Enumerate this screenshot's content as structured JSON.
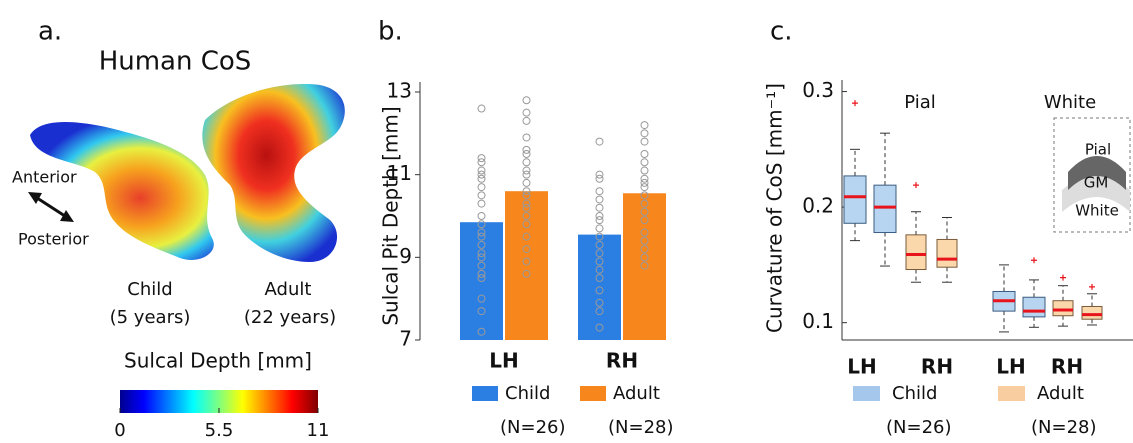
{
  "panel_a": {
    "label": "a.",
    "title": "Human CoS",
    "arrow_labels": [
      "Anterior",
      "Posterior"
    ],
    "subjects": [
      {
        "name": "Child",
        "age": "(5 years)"
      },
      {
        "name": "Adult",
        "age": "(22 years)"
      }
    ],
    "colorbar": {
      "title": "Sulcal Depth [mm]",
      "lim": [
        0,
        11
      ],
      "ticks": [
        0,
        5.5,
        11
      ]
    }
  },
  "chart_data": [
    {
      "type": "bar",
      "label": "b.",
      "ylabel": "Sulcal Pit Depth [mm]",
      "categories": [
        "LH",
        "RH"
      ],
      "ylim": [
        7,
        13
      ],
      "yticks": [
        7,
        9,
        11,
        13
      ],
      "series": [
        {
          "name": "Child",
          "note": "(N=26)",
          "color": "#2b7fe3",
          "values": [
            9.85,
            9.55
          ],
          "points": [
            [
              12.6,
              11.4,
              11.3,
              11.1,
              11.0,
              10.9,
              10.7,
              10.5,
              10.3,
              10.0,
              9.8,
              9.6,
              9.5,
              9.3,
              9.1,
              9.0,
              8.8,
              8.6,
              8.5,
              8.0,
              7.7,
              7.2
            ],
            [
              11.8,
              11.0,
              10.9,
              10.6,
              10.4,
              10.2,
              10.0,
              9.9,
              9.7,
              9.5,
              9.3,
              9.1,
              8.9,
              8.7,
              8.5,
              8.2,
              7.9,
              7.7,
              7.3
            ]
          ]
        },
        {
          "name": "Adult",
          "note": "(N=28)",
          "color": "#f7861d",
          "values": [
            10.6,
            10.55
          ],
          "points": [
            [
              12.8,
              12.5,
              12.3,
              11.9,
              11.6,
              11.5,
              11.3,
              11.1,
              11.0,
              10.8,
              10.6,
              10.5,
              10.3,
              10.2,
              10.0,
              9.8,
              9.5,
              9.2,
              8.9,
              8.6
            ],
            [
              12.2,
              12.0,
              11.8,
              11.5,
              11.3,
              11.1,
              10.9,
              10.8,
              10.7,
              10.5,
              10.3,
              10.1,
              9.9,
              9.6,
              9.4,
              9.2,
              9.0,
              8.8
            ]
          ]
        }
      ]
    },
    {
      "type": "box",
      "label": "c.",
      "ylabel": "Curvature  of CoS [mm⁻¹]",
      "xlabels": [
        "LH",
        "RH",
        "LH",
        "RH"
      ],
      "annotations": [
        "Pial",
        "White"
      ],
      "inset_labels": [
        "Pial",
        "GM",
        "White"
      ],
      "ylim": [
        0.085,
        0.31
      ],
      "yticks": [
        0.1,
        0.2,
        0.3
      ],
      "series": [
        {
          "name": "Child",
          "note": "(N=26)",
          "color": "#b7d5f1",
          "edge": "#3b5b80",
          "legend_color": "#a6c7ec",
          "boxes": [
            {
              "whisker_low": 0.171,
              "q1": 0.186,
              "median": 0.209,
              "q3": 0.227,
              "whisker_high": 0.25,
              "outliers": [
                0.29
              ]
            },
            {
              "whisker_low": 0.149,
              "q1": 0.178,
              "median": 0.2,
              "q3": 0.219,
              "whisker_high": 0.264,
              "outliers": []
            },
            {
              "whisker_low": 0.092,
              "q1": 0.11,
              "median": 0.119,
              "q3": 0.127,
              "whisker_high": 0.15,
              "outliers": []
            },
            {
              "whisker_low": 0.096,
              "q1": 0.105,
              "median": 0.11,
              "q3": 0.122,
              "whisker_high": 0.137,
              "outliers": [
                0.154
              ]
            }
          ]
        },
        {
          "name": "Adult",
          "note": "(N=28)",
          "color": "#fbd8ab",
          "edge": "#7a5a3a",
          "legend_color": "#f8cea0",
          "boxes": [
            {
              "whisker_low": 0.135,
              "q1": 0.146,
              "median": 0.159,
              "q3": 0.176,
              "whisker_high": 0.196,
              "outliers": [
                0.219
              ]
            },
            {
              "whisker_low": 0.135,
              "q1": 0.148,
              "median": 0.155,
              "q3": 0.172,
              "whisker_high": 0.191,
              "outliers": []
            },
            {
              "whisker_low": 0.097,
              "q1": 0.106,
              "median": 0.111,
              "q3": 0.119,
              "whisker_high": 0.132,
              "outliers": [
                0.139
              ]
            },
            {
              "whisker_low": 0.098,
              "q1": 0.103,
              "median": 0.107,
              "q3": 0.114,
              "whisker_high": 0.125,
              "outliers": [
                0.131
              ]
            }
          ]
        }
      ]
    }
  ]
}
